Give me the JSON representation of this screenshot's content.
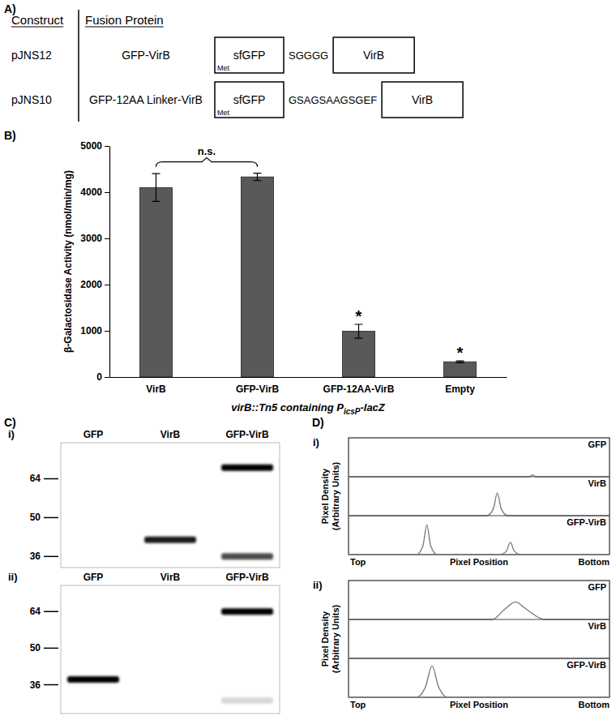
{
  "panel_labels": [
    "A)",
    "B)",
    "C)",
    "D)"
  ],
  "constructs": {
    "headers": [
      "Construct",
      "Fusion Protein"
    ],
    "rows": [
      {
        "construct": "pJNS12",
        "protein": "GFP-VirB",
        "start": "Met",
        "domains": [
          "sfGFP",
          "VirB"
        ],
        "linker": "SGGGG"
      },
      {
        "construct": "pJNS10",
        "protein": "GFP-12AA Linker-VirB",
        "start": "Met",
        "domains": [
          "sfGFP",
          "VirB"
        ],
        "linker": "GSAGSAAGSGEF"
      }
    ]
  },
  "chart_data": {
    "type": "bar",
    "categories": [
      "VirB",
      "GFP-VirB",
      "GFP-12AA-VirB",
      "Empty"
    ],
    "values": [
      4100,
      4330,
      990,
      330
    ],
    "errors": [
      300,
      80,
      150,
      20
    ],
    "color": "#595959",
    "ylim": [
      0,
      5000
    ],
    "yticks": [
      0,
      1000,
      2000,
      3000,
      4000,
      5000
    ],
    "y_label": "β-Galactosidase Activity (nmol/min/mg)",
    "x_label": [
      "virB::Tn5 containing P",
      "icsP",
      "-lacZ"
    ],
    "annotations": [
      {
        "text": "n.s.",
        "categories": [
          0,
          1
        ]
      },
      {
        "text": "*",
        "categories": [
          2
        ]
      },
      {
        "text": "*",
        "categories": [
          3
        ]
      }
    ]
  },
  "blots": {
    "panels": [
      {
        "label": "i)",
        "lanes": [
          "GFP",
          "VirB",
          "GFP-VirB"
        ],
        "markers": [
          64,
          50,
          36
        ],
        "mw_range": [
          77,
          32
        ],
        "bands": [
          {
            "lane": 1,
            "mw": 42,
            "intensity": 0.9
          },
          {
            "lane": 2,
            "mw": 68,
            "intensity": 1
          },
          {
            "lane": 2,
            "mw": 36,
            "intensity": 0.7
          }
        ]
      },
      {
        "label": "ii)",
        "lanes": [
          "GFP",
          "VirB",
          "GFP-VirB"
        ],
        "markers": [
          64,
          50,
          36
        ],
        "mw_range": [
          74,
          25
        ],
        "bands": [
          {
            "lane": 0,
            "mw": 38,
            "intensity": 1
          },
          {
            "lane": 2,
            "mw": 64,
            "intensity": 1
          },
          {
            "lane": 2,
            "mw": 30,
            "intensity": 0.15
          }
        ]
      }
    ]
  },
  "densitometry": {
    "y_label": [
      "Pixel Density",
      "(Arbitrary Units)"
    ],
    "x_label": "Pixel Position",
    "left_label": "Top",
    "right_label": "Bottom",
    "xlim": [
      0,
      1
    ],
    "ylim": [
      0,
      1
    ],
    "panels": [
      {
        "label": "i)",
        "tracks": [
          {
            "name": "GFP",
            "x": [
              0,
              0.69,
              0.705,
              0.72,
              1
            ],
            "values": [
              0,
              0,
              0.05,
              0,
              0
            ]
          },
          {
            "name": "VirB",
            "x": [
              0,
              0.53,
              0.555,
              0.57,
              0.585,
              0.61,
              1
            ],
            "values": [
              0,
              0,
              0.2,
              0.65,
              0.2,
              0,
              0
            ]
          },
          {
            "name": "GFP-VirB",
            "x": [
              0,
              0.26,
              0.285,
              0.3,
              0.315,
              0.34,
              0.58,
              0.605,
              0.62,
              0.635,
              0.66,
              1
            ],
            "values": [
              0,
              0,
              0.25,
              0.85,
              0.25,
              0,
              0,
              0.1,
              0.35,
              0.1,
              0,
              0
            ]
          }
        ]
      },
      {
        "label": "ii)",
        "tracks": [
          {
            "name": "GFP",
            "x": [
              0,
              0.55,
              0.6,
              0.64,
              0.68,
              0.75,
              1
            ],
            "values": [
              0,
              0,
              0.3,
              0.5,
              0.3,
              0,
              0
            ]
          },
          {
            "name": "VirB",
            "x": [
              0,
              1
            ],
            "values": [
              0,
              0
            ]
          },
          {
            "name": "GFP-VirB",
            "x": [
              0,
              0.26,
              0.295,
              0.32,
              0.345,
              0.38,
              1
            ],
            "values": [
              0,
              0,
              0.3,
              0.9,
              0.3,
              0,
              0
            ]
          }
        ]
      }
    ]
  }
}
